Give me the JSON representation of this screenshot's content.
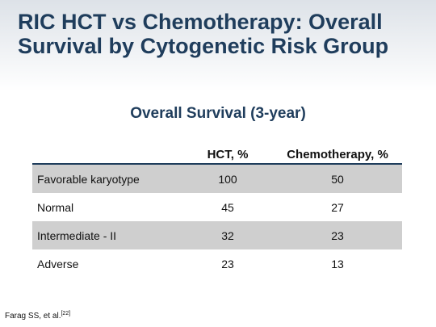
{
  "slide": {
    "title": "RIC HCT vs Chemotherapy: Overall Survival by Cytogenetic Risk Group",
    "table_heading": "Overall Survival (3-year)"
  },
  "table": {
    "headers": [
      "",
      "HCT, %",
      "Chemotherapy, %"
    ],
    "rows": [
      {
        "group": "Favorable karyotype",
        "hct": "100",
        "chemo": "50"
      },
      {
        "group": "Normal",
        "hct": "45",
        "chemo": "27"
      },
      {
        "group": "Intermediate - II",
        "hct": "32",
        "chemo": "23"
      },
      {
        "group": "Adverse",
        "hct": "23",
        "chemo": "13"
      }
    ]
  },
  "citation": {
    "text": "Farag SS, et al.",
    "ref": "[22]"
  },
  "colors": {
    "title": "#1f3d5c",
    "row_shade": "#cfcfcf",
    "header_rule": "#1f3d5c"
  }
}
